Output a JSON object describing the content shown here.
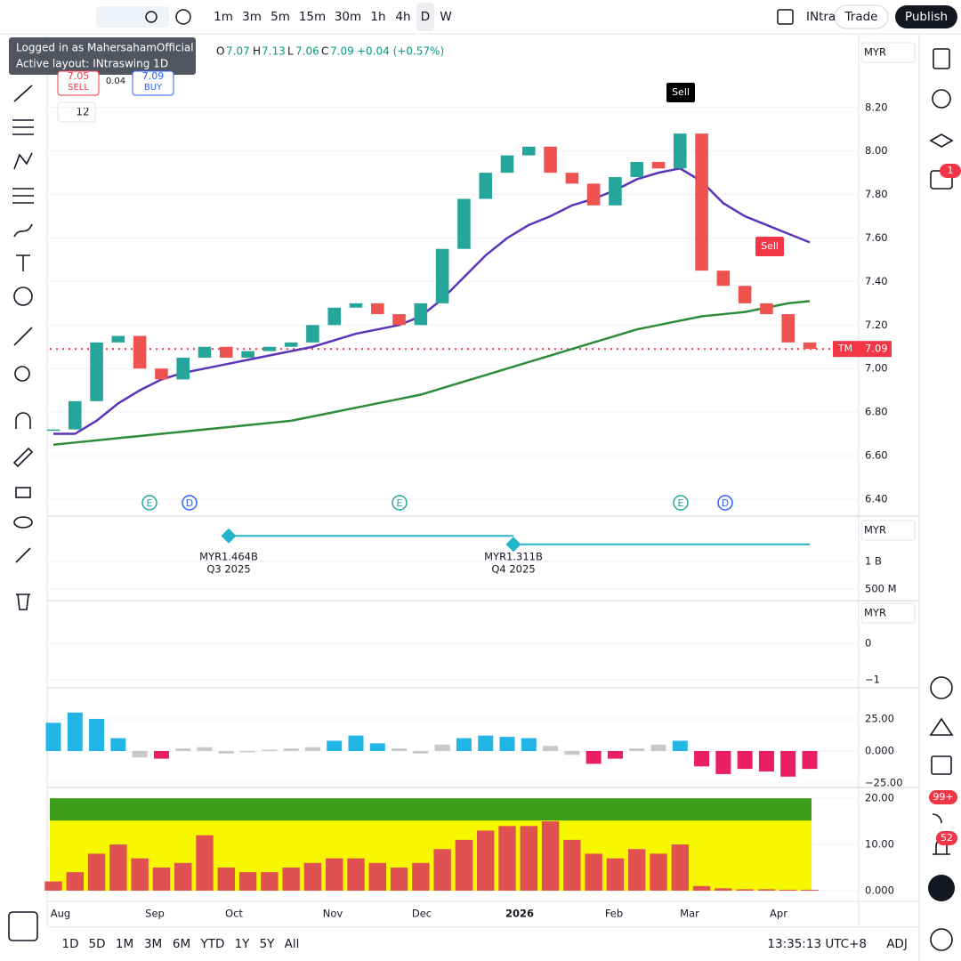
{
  "toolbar": {
    "intervals": [
      "1m",
      "3m",
      "5m",
      "15m",
      "30m",
      "1h",
      "4h",
      "D",
      "W"
    ],
    "layout_name": "INtra",
    "trade": "Trade",
    "publish": "Publish"
  },
  "tooltip": {
    "line1": "Logged in as MahersahamOfficial",
    "line2": "Active layout: INtraswing 1D"
  },
  "legend": {
    "o_label": "O",
    "open": "7.07",
    "h_label": "H",
    "high": "7.13",
    "l_label": "L",
    "low": "7.06",
    "c_label": "C",
    "close": "7.09",
    "change": "+0.04 (+0.57%)"
  },
  "trade_buttons": {
    "sell_price": "7.05",
    "sell": "SELL",
    "spread": "0.04",
    "buy_price": "7.09",
    "buy": "BUY"
  },
  "indicator_count": "12",
  "currency": "MYR",
  "badges": {
    "alerts": "1",
    "feed": "99+",
    "notifications": "52"
  },
  "bottom_bar": {
    "ranges": [
      "1D",
      "5D",
      "1M",
      "3M",
      "6M",
      "YTD",
      "1Y",
      "5Y",
      "All"
    ],
    "clock": "13:35:13 UTC+8",
    "adj": "ADJ"
  },
  "chart_data": [
    {
      "type": "candlestick",
      "symbol": "TM",
      "last_price": {
        "value": 7.09,
        "label": "7.09"
      },
      "ylim": [
        6.33,
        8.51
      ],
      "yticks": [
        {
          "value": 8.2,
          "label": "8.20"
        },
        {
          "value": 8.0,
          "label": "8.00"
        },
        {
          "value": 7.8,
          "label": "7.80"
        },
        {
          "value": 7.6,
          "label": "7.60"
        },
        {
          "value": 7.4,
          "label": "7.40"
        },
        {
          "value": 7.2,
          "label": "7.20"
        },
        {
          "value": 7.0,
          "label": "7.00"
        },
        {
          "value": 6.8,
          "label": "6.80"
        },
        {
          "value": 6.6,
          "label": "6.60"
        },
        {
          "value": 6.4,
          "label": "6.40"
        }
      ],
      "series": [
        {
          "color": "#26a69a",
          "values": [
            6.72,
            6.85,
            7.12,
            7.15,
            7.0,
            6.95,
            7.05,
            7.1,
            7.05,
            7.08,
            7.1,
            7.12,
            7.2,
            7.28,
            7.3,
            7.25,
            7.2,
            7.3,
            7.55,
            7.78,
            7.9,
            7.98,
            8.02,
            7.9,
            7.85,
            7.75,
            7.88,
            7.95,
            7.92,
            8.08,
            7.45,
            7.38,
            7.3,
            7.25,
            7.12,
            7.09
          ]
        },
        {
          "color": "#5b34b8",
          "values": [
            6.7,
            6.7,
            6.76,
            6.84,
            6.9,
            6.95,
            6.98,
            7.0,
            7.02,
            7.04,
            7.06,
            7.08,
            7.1,
            7.13,
            7.16,
            7.18,
            7.2,
            7.24,
            7.32,
            7.42,
            7.52,
            7.6,
            7.66,
            7.7,
            7.75,
            7.78,
            7.82,
            7.87,
            7.9,
            7.92,
            7.86,
            7.76,
            7.7,
            7.66,
            7.62,
            7.58
          ]
        },
        {
          "color": "#2e8b3a",
          "values": [
            6.65,
            6.66,
            6.67,
            6.68,
            6.69,
            6.7,
            6.71,
            6.72,
            6.73,
            6.74,
            6.75,
            6.76,
            6.78,
            6.8,
            6.82,
            6.84,
            6.86,
            6.88,
            6.91,
            6.94,
            6.97,
            7.0,
            7.03,
            7.06,
            7.09,
            7.12,
            7.15,
            7.18,
            7.2,
            7.22,
            7.24,
            7.25,
            7.26,
            7.28,
            7.3,
            7.31
          ]
        }
      ],
      "signals": [
        "Sell",
        "Sell"
      ],
      "events": [
        "E",
        "D",
        "E",
        "E",
        "D"
      ],
      "xlabels": [
        "Aug",
        "Sep",
        "Oct",
        "Nov",
        "Dec",
        "2026",
        "Feb",
        "Mar",
        "Apr"
      ]
    },
    {
      "type": "earnings",
      "ylim": [
        0.339,
        1.742
      ],
      "yticks": [
        {
          "value": 1,
          "label": "1 B"
        },
        {
          "value": 0.5,
          "label": "500 M"
        }
      ],
      "values": [
        1.464,
        1.311
      ],
      "value_labels": [
        "MYR1.464B",
        "MYR1.311B"
      ],
      "periods": [
        "Q3 2025",
        "Q4 2025"
      ],
      "color": "#22b5cc"
    },
    {
      "type": "empty",
      "ylim": [
        -1.2,
        1.05
      ],
      "yticks": [
        0,
        {
          "value": -1,
          "label": "−1"
        }
      ]
    },
    {
      "type": "histogram",
      "ylim": [
        -25,
        47.9
      ],
      "yticks": [
        {
          "value": 25,
          "label": "25.00"
        },
        {
          "value": 0,
          "label": "0.000"
        },
        {
          "value": -25,
          "label": "−25.00"
        }
      ],
      "colors": {
        "up": "#22b5e6",
        "down": "#e91e63",
        "weak": "#c8c8c8"
      },
      "values": [
        22,
        30,
        25,
        10,
        -5,
        -6,
        2,
        3,
        -2,
        -1,
        1,
        2,
        3,
        8,
        12,
        6,
        2,
        -2,
        5,
        10,
        12,
        11,
        10,
        4,
        -3,
        -10,
        -6,
        2,
        5,
        8,
        -12,
        -18,
        -14,
        -16,
        -20,
        -14
      ]
    },
    {
      "type": "bar",
      "ylim": [
        -0.4,
        20.8
      ],
      "yticks": [
        {
          "value": 20,
          "label": "20.00"
        },
        {
          "value": 10,
          "label": "10.00"
        },
        {
          "value": 0,
          "label": "0.000"
        }
      ],
      "color": "#e05252",
      "values": [
        2,
        4,
        8,
        10,
        7,
        5,
        6,
        12,
        5,
        4,
        4,
        5,
        6,
        7,
        7,
        6,
        5,
        6,
        9,
        11,
        13,
        14,
        14,
        15,
        11,
        8,
        7,
        9,
        8,
        10,
        1,
        0.5,
        0.3,
        0.3,
        0.2,
        0.2
      ]
    }
  ]
}
